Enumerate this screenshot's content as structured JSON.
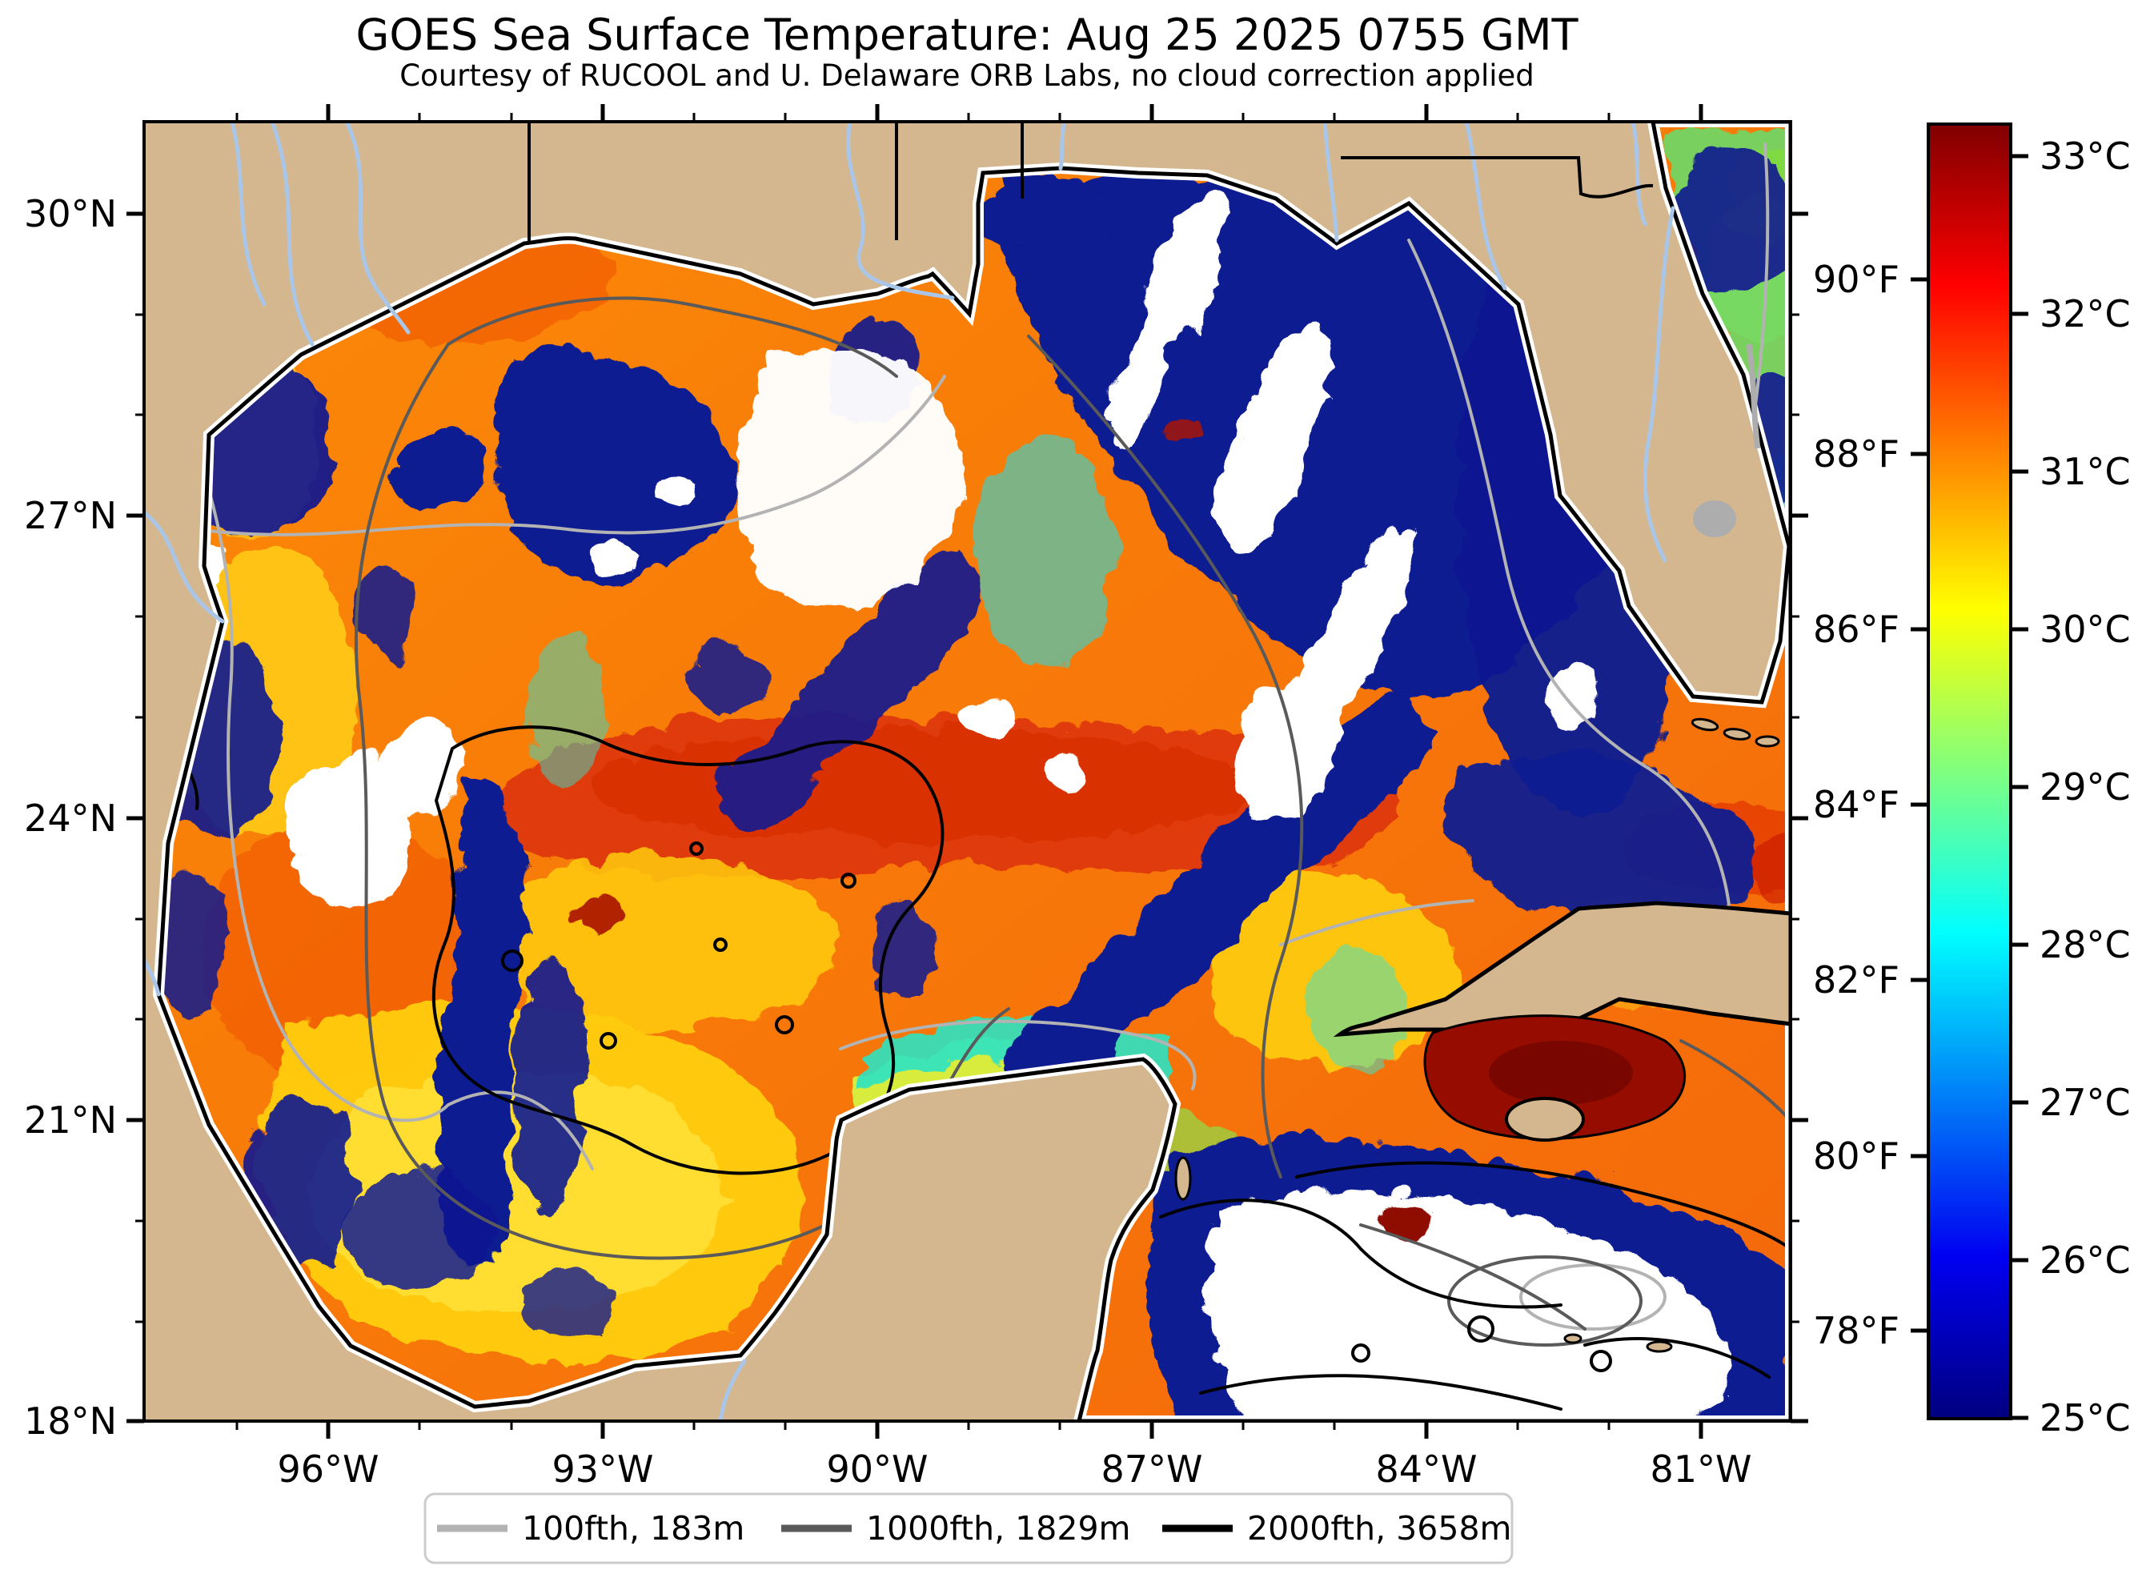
{
  "figure": {
    "title": "GOES Sea Surface Temperature: Aug 25 2025 0755 GMT",
    "subtitle": "Courtesy of RUCOOL and U. Delaware ORB Labs, no cloud correction applied"
  },
  "axes": {
    "lat_labels": [
      "30°N",
      "27°N",
      "24°N",
      "21°N",
      "18°N"
    ],
    "lon_labels": [
      "96°W",
      "93°W",
      "90°W",
      "87°W",
      "84°W",
      "81°W"
    ]
  },
  "colorbar": {
    "celsius_labels": [
      "33°C",
      "32°C",
      "31°C",
      "30°C",
      "29°C",
      "28°C",
      "27°C",
      "26°C",
      "25°C"
    ],
    "fahrenheit_labels": [
      "90°F",
      "88°F",
      "86°F",
      "84°F",
      "82°F",
      "80°F",
      "78°F"
    ],
    "min_c": 25,
    "max_c": 33.4,
    "colormap": "jet",
    "colormap_stops_top_to_bottom": [
      "#800000",
      "#ff0000",
      "#ffff00",
      "#00ffff",
      "#0000f1",
      "#000080"
    ]
  },
  "legend": {
    "items": [
      {
        "label": "100fth, 183m",
        "color": "#b3b3b3"
      },
      {
        "label": "1000fth, 1829m",
        "color": "#5a5a5a"
      },
      {
        "label": "2000fth, 3658m",
        "color": "#000000"
      }
    ]
  },
  "palette": {
    "land": "#D4B78F",
    "coastline": "#000000",
    "river": "#A9C6E8",
    "lake": "#ADADAD",
    "water_base_orange": "#FA7E08",
    "warm_band_red": "#E03A08",
    "hotspot_dark_red": "#8F0A00",
    "shelf_yellow": "#FFCE0E",
    "band_green": "#8FE04A",
    "band_cyan": "#2EE3C3",
    "cloud_navy": "#111A90",
    "missing_white": "#FFFFFF",
    "contour_100fth": "#B3B3B3",
    "contour_1000fth": "#5A5A5A",
    "contour_2000fth": "#000000"
  }
}
